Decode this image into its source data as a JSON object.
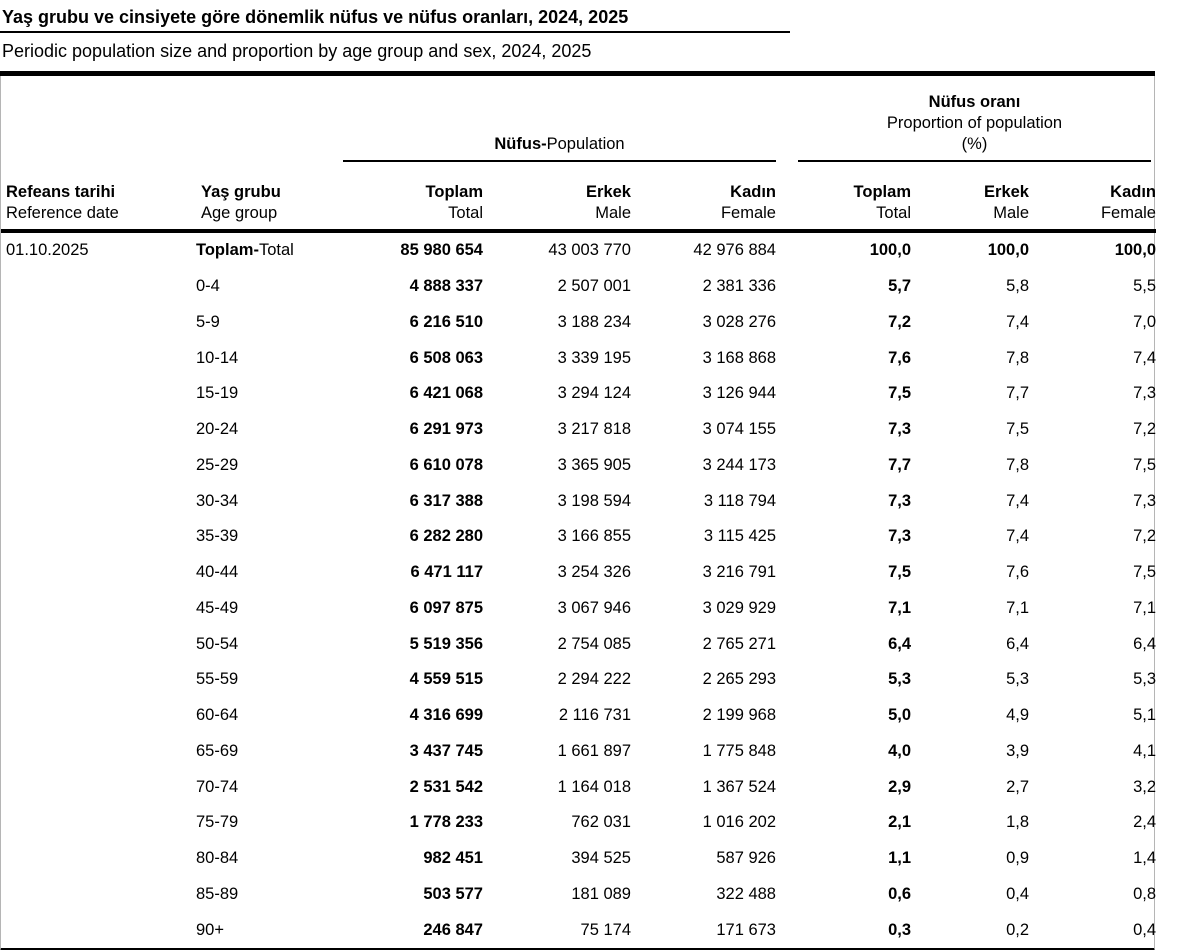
{
  "title": "Yaş grubu ve cinsiyete göre dönemlik nüfus ve nüfus oranları, 2024, 2025",
  "subtitle": "Periodic population size and proportion by age group and sex, 2024, 2025",
  "table": {
    "group_headers": {
      "population": {
        "tr": "Nüfus-",
        "en": "Population"
      },
      "proportion": {
        "tr": "Nüfus oranı",
        "en": "Proportion of population",
        "unit": "(%)"
      }
    },
    "columns": [
      {
        "tr": "Refeans tarihi",
        "en": "Reference date"
      },
      {
        "tr": "Yaş grubu",
        "en": "Age group"
      },
      {
        "tr": "Toplam",
        "en": "Total"
      },
      {
        "tr": "Erkek",
        "en": "Male"
      },
      {
        "tr": "Kadın",
        "en": "Female"
      },
      {
        "tr": "Toplam",
        "en": "Total"
      },
      {
        "tr": "Erkek",
        "en": "Male"
      },
      {
        "tr": "Kadın",
        "en": "Female"
      }
    ],
    "rows": [
      {
        "date": "01.10.2025",
        "age_bold": "Toplam-",
        "age": "Total",
        "total": true,
        "pop_total": "85 980 654",
        "pop_male": "43 003 770",
        "pop_female": "42 976 884",
        "pct_total": "100,0",
        "pct_male": "100,0",
        "pct_female": "100,0"
      },
      {
        "date": "",
        "age_bold": "",
        "age": "0-4",
        "pop_total": "4 888 337",
        "pop_male": "2 507 001",
        "pop_female": "2 381 336",
        "pct_total": "5,7",
        "pct_male": "5,8",
        "pct_female": "5,5"
      },
      {
        "date": "",
        "age_bold": "",
        "age": "5-9",
        "pop_total": "6 216 510",
        "pop_male": "3 188 234",
        "pop_female": "3 028 276",
        "pct_total": "7,2",
        "pct_male": "7,4",
        "pct_female": "7,0"
      },
      {
        "date": "",
        "age_bold": "",
        "age": "10-14",
        "pop_total": "6 508 063",
        "pop_male": "3 339 195",
        "pop_female": "3 168 868",
        "pct_total": "7,6",
        "pct_male": "7,8",
        "pct_female": "7,4"
      },
      {
        "date": "",
        "age_bold": "",
        "age": "15-19",
        "pop_total": "6 421 068",
        "pop_male": "3 294 124",
        "pop_female": "3 126 944",
        "pct_total": "7,5",
        "pct_male": "7,7",
        "pct_female": "7,3"
      },
      {
        "date": "",
        "age_bold": "",
        "age": "20-24",
        "pop_total": "6 291 973",
        "pop_male": "3 217 818",
        "pop_female": "3 074 155",
        "pct_total": "7,3",
        "pct_male": "7,5",
        "pct_female": "7,2"
      },
      {
        "date": "",
        "age_bold": "",
        "age": "25-29",
        "pop_total": "6 610 078",
        "pop_male": "3 365 905",
        "pop_female": "3 244 173",
        "pct_total": "7,7",
        "pct_male": "7,8",
        "pct_female": "7,5"
      },
      {
        "date": "",
        "age_bold": "",
        "age": "30-34",
        "pop_total": "6 317 388",
        "pop_male": "3 198 594",
        "pop_female": "3 118 794",
        "pct_total": "7,3",
        "pct_male": "7,4",
        "pct_female": "7,3"
      },
      {
        "date": "",
        "age_bold": "",
        "age": "35-39",
        "pop_total": "6 282 280",
        "pop_male": "3 166 855",
        "pop_female": "3 115 425",
        "pct_total": "7,3",
        "pct_male": "7,4",
        "pct_female": "7,2"
      },
      {
        "date": "",
        "age_bold": "",
        "age": "40-44",
        "pop_total": "6 471 117",
        "pop_male": "3 254 326",
        "pop_female": "3 216 791",
        "pct_total": "7,5",
        "pct_male": "7,6",
        "pct_female": "7,5"
      },
      {
        "date": "",
        "age_bold": "",
        "age": "45-49",
        "pop_total": "6 097 875",
        "pop_male": "3 067 946",
        "pop_female": "3 029 929",
        "pct_total": "7,1",
        "pct_male": "7,1",
        "pct_female": "7,1"
      },
      {
        "date": "",
        "age_bold": "",
        "age": "50-54",
        "pop_total": "5 519 356",
        "pop_male": "2 754 085",
        "pop_female": "2 765 271",
        "pct_total": "6,4",
        "pct_male": "6,4",
        "pct_female": "6,4"
      },
      {
        "date": "",
        "age_bold": "",
        "age": "55-59",
        "pop_total": "4 559 515",
        "pop_male": "2 294 222",
        "pop_female": "2 265 293",
        "pct_total": "5,3",
        "pct_male": "5,3",
        "pct_female": "5,3"
      },
      {
        "date": "",
        "age_bold": "",
        "age": "60-64",
        "pop_total": "4 316 699",
        "pop_male": "2 116 731",
        "pop_female": "2 199 968",
        "pct_total": "5,0",
        "pct_male": "4,9",
        "pct_female": "5,1"
      },
      {
        "date": "",
        "age_bold": "",
        "age": "65-69",
        "pop_total": "3 437 745",
        "pop_male": "1 661 897",
        "pop_female": "1 775 848",
        "pct_total": "4,0",
        "pct_male": "3,9",
        "pct_female": "4,1"
      },
      {
        "date": "",
        "age_bold": "",
        "age": "70-74",
        "pop_total": "2 531 542",
        "pop_male": "1 164 018",
        "pop_female": "1 367 524",
        "pct_total": "2,9",
        "pct_male": "2,7",
        "pct_female": "3,2"
      },
      {
        "date": "",
        "age_bold": "",
        "age": "75-79",
        "pop_total": "1 778 233",
        "pop_male": "762 031",
        "pop_female": "1 016 202",
        "pct_total": "2,1",
        "pct_male": "1,8",
        "pct_female": "2,4"
      },
      {
        "date": "",
        "age_bold": "",
        "age": "80-84",
        "pop_total": "982 451",
        "pop_male": "394 525",
        "pop_female": "587 926",
        "pct_total": "1,1",
        "pct_male": "0,9",
        "pct_female": "1,4"
      },
      {
        "date": "",
        "age_bold": "",
        "age": "85-89",
        "pop_total": "503 577",
        "pop_male": "181 089",
        "pop_female": "322 488",
        "pct_total": "0,6",
        "pct_male": "0,4",
        "pct_female": "0,8"
      },
      {
        "date": "",
        "age_bold": "",
        "age": "90+",
        "pop_total": "246 847",
        "pop_male": "75 174",
        "pop_female": "171 673",
        "pct_total": "0,3",
        "pct_male": "0,2",
        "pct_female": "0,4"
      }
    ]
  }
}
